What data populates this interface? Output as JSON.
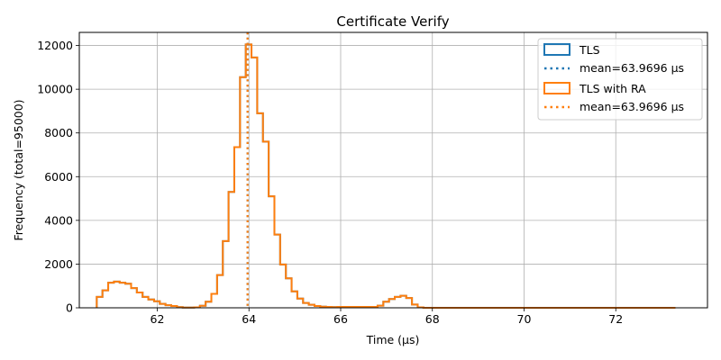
{
  "chart_data": {
    "type": "histogram",
    "title": "Certificate Verify",
    "xlabel": "Time (µs)",
    "ylabel": "Frequency (total=95000)",
    "xlim": [
      60.3,
      74.0
    ],
    "ylim": [
      0,
      12600
    ],
    "xticks": [
      62,
      64,
      66,
      68,
      70,
      72
    ],
    "yticks": [
      0,
      2000,
      4000,
      6000,
      8000,
      10000,
      12000
    ],
    "grid": true,
    "legend_position": "top-right",
    "bin_edges": [
      60.68,
      60.805,
      60.93,
      61.055,
      61.18,
      61.305,
      61.43,
      61.555,
      61.68,
      61.805,
      61.93,
      62.055,
      62.18,
      62.305,
      62.43,
      62.555,
      62.68,
      62.805,
      62.93,
      63.055,
      63.18,
      63.305,
      63.43,
      63.555,
      63.68,
      63.805,
      63.93,
      64.055,
      64.18,
      64.305,
      64.43,
      64.555,
      64.68,
      64.805,
      64.93,
      65.055,
      65.18,
      65.305,
      65.43,
      65.555,
      65.68,
      65.805,
      65.93,
      66.055,
      66.18,
      66.305,
      66.43,
      66.555,
      66.68,
      66.805,
      66.93,
      67.055,
      67.18,
      67.305,
      67.43,
      67.555,
      67.68,
      67.805,
      73.3
    ],
    "series": [
      {
        "name": "TLS",
        "color": "#1f77b4",
        "counts": [
          500,
          800,
          1150,
          1200,
          1150,
          1100,
          900,
          700,
          500,
          380,
          300,
          180,
          120,
          80,
          30,
          10,
          10,
          20,
          90,
          280,
          640,
          1500,
          3050,
          5300,
          7350,
          10550,
          12050,
          11450,
          8900,
          7600,
          5100,
          3350,
          1980,
          1350,
          750,
          420,
          220,
          140,
          80,
          50,
          40,
          30,
          40,
          40,
          40,
          40,
          40,
          40,
          40,
          100,
          280,
          400,
          500,
          550,
          450,
          150,
          20,
          0
        ],
        "mean": 63.9696,
        "mean_label": "mean=63.9696 µs"
      },
      {
        "name": "TLS with RA",
        "color": "#ff7f0e",
        "counts": [
          500,
          800,
          1150,
          1200,
          1150,
          1100,
          900,
          700,
          500,
          380,
          300,
          180,
          120,
          80,
          30,
          10,
          10,
          20,
          90,
          280,
          640,
          1500,
          3050,
          5300,
          7350,
          10550,
          12050,
          11450,
          8900,
          7600,
          5100,
          3350,
          1980,
          1350,
          750,
          420,
          220,
          140,
          80,
          50,
          40,
          30,
          40,
          40,
          40,
          40,
          40,
          40,
          40,
          100,
          280,
          400,
          500,
          550,
          450,
          150,
          20,
          0
        ],
        "mean": 63.9696,
        "mean_label": "mean=63.9696 µs"
      }
    ]
  }
}
